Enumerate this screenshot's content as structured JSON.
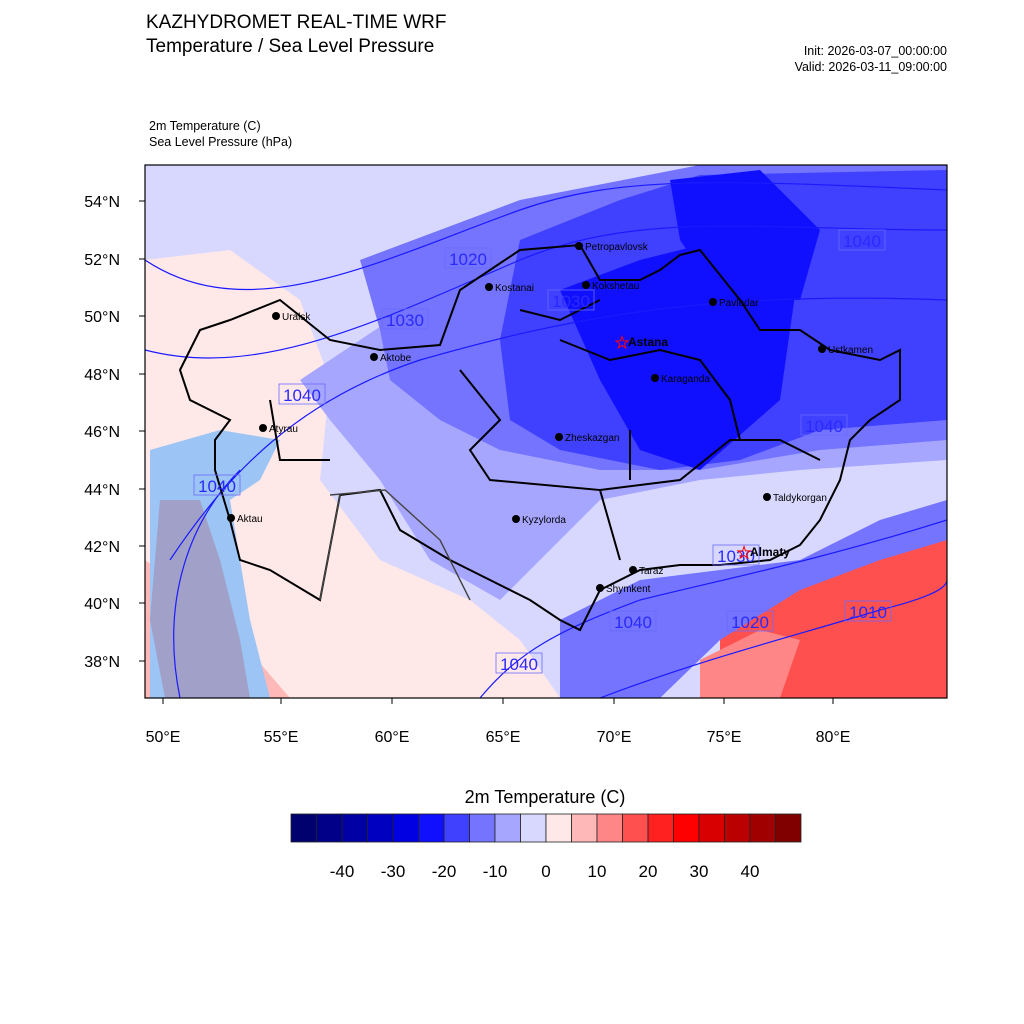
{
  "header": {
    "title": "KAZHYDROMET REAL-TIME WRF",
    "subtitle": "Temperature / Sea Level Pressure",
    "init": "Init: 2026-03-07_00:00:00",
    "valid": "Valid: 2026-03-11_09:00:00",
    "field1": "2m Temperature   (C)",
    "field2": "Sea Level Pressure   (hPa)"
  },
  "axes": {
    "lat_labels": [
      "54°N",
      "52°N",
      "50°N",
      "48°N",
      "46°N",
      "44°N",
      "42°N",
      "40°N",
      "38°N"
    ],
    "lon_labels": [
      "50°E",
      "55°E",
      "60°E",
      "65°E",
      "70°E",
      "75°E",
      "80°E"
    ]
  },
  "cities": [
    {
      "name": "Petropavlovsk",
      "capital": false
    },
    {
      "name": "Kostanai",
      "capital": false
    },
    {
      "name": "Kokshetau",
      "capital": false
    },
    {
      "name": "Pavlodar",
      "capital": false
    },
    {
      "name": "Uralsk",
      "capital": false
    },
    {
      "name": "Aktobe",
      "capital": false
    },
    {
      "name": "Astana",
      "capital": true
    },
    {
      "name": "Ustkamen",
      "capital": false
    },
    {
      "name": "Karaganda",
      "capital": false
    },
    {
      "name": "Atyrau",
      "capital": false
    },
    {
      "name": "Zheskazgan",
      "capital": false
    },
    {
      "name": "Taldykorgan",
      "capital": false
    },
    {
      "name": "Aktau",
      "capital": false
    },
    {
      "name": "Kyzylorda",
      "capital": false
    },
    {
      "name": "Almaty",
      "capital": true
    },
    {
      "name": "Taraz",
      "capital": false
    },
    {
      "name": "Shymkent",
      "capital": false
    }
  ],
  "pressure_labels": [
    "1020",
    "1030",
    "1030",
    "1040",
    "1040",
    "1040",
    "1040",
    "1040",
    "1040",
    "1010",
    "1020",
    "1030"
  ],
  "colorbar": {
    "title": "2m Temperature  (C)",
    "ticks": [
      "-40",
      "-30",
      "-20",
      "-10",
      "0",
      "10",
      "20",
      "30",
      "40"
    ],
    "colors": [
      "#00006e",
      "#000088",
      "#0000a4",
      "#0000c0",
      "#0000e2",
      "#1010ff",
      "#4040ff",
      "#7474ff",
      "#a6a6ff",
      "#d8d8ff",
      "#ffe8e8",
      "#ffb8b8",
      "#ff8686",
      "#ff5050",
      "#ff2020",
      "#ff0000",
      "#d80000",
      "#ba0000",
      "#a00000",
      "#800000"
    ]
  }
}
